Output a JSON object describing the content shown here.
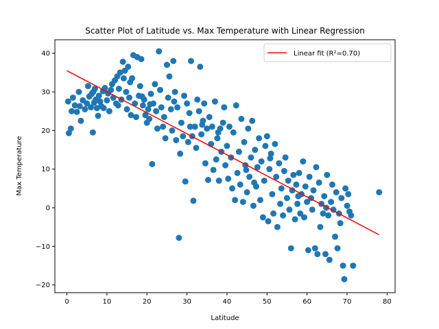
{
  "chart_data": {
    "type": "scatter",
    "title": "Scatter Plot of Latitude vs. Max Temperature with Linear Regression",
    "xlabel": "Latitude",
    "ylabel": "Max Temperature",
    "xlim": [
      -3,
      82
    ],
    "ylim": [
      -22,
      43.5
    ],
    "xticks": [
      0,
      10,
      20,
      30,
      40,
      50,
      60,
      70,
      80
    ],
    "yticks": [
      -20,
      -10,
      0,
      10,
      20,
      30,
      40
    ],
    "grid": false,
    "legend_position": "top-right",
    "colors": {
      "points": "#1f77b4",
      "fit_line": "#ff0000"
    },
    "series": [
      {
        "type": "scatter",
        "points": [
          [
            0.3,
            27.5
          ],
          [
            0.5,
            19.3
          ],
          [
            1.0,
            20.5
          ],
          [
            1.2,
            25.0
          ],
          [
            1.5,
            28.5
          ],
          [
            2.0,
            26.5
          ],
          [
            2.5,
            24.8
          ],
          [
            3.0,
            30.0
          ],
          [
            3.5,
            22.5
          ],
          [
            4.0,
            27.8
          ],
          [
            4.5,
            25.5
          ],
          [
            5.0,
            27.0
          ],
          [
            5.3,
            31.5
          ],
          [
            5.6,
            28.8
          ],
          [
            6.0,
            26.0
          ],
          [
            6.2,
            29.5
          ],
          [
            6.5,
            19.5
          ],
          [
            6.8,
            27.2
          ],
          [
            7.0,
            30.8
          ],
          [
            7.2,
            28.0
          ],
          [
            7.5,
            25.8
          ],
          [
            7.8,
            23.8
          ],
          [
            8.0,
            29.0
          ],
          [
            8.3,
            27.5
          ],
          [
            8.6,
            26.3
          ],
          [
            9.0,
            30.2
          ],
          [
            9.5,
            31.0
          ],
          [
            10.0,
            27.8
          ],
          [
            10.3,
            29.6
          ],
          [
            10.6,
            25.0
          ],
          [
            11.0,
            30.5
          ],
          [
            11.3,
            32.0
          ],
          [
            11.6,
            28.5
          ],
          [
            12.0,
            33.0
          ],
          [
            12.3,
            27.0
          ],
          [
            12.6,
            34.0
          ],
          [
            13.0,
            30.8
          ],
          [
            13.3,
            35.0
          ],
          [
            13.6,
            28.0
          ],
          [
            14.0,
            37.8
          ],
          [
            14.2,
            33.5
          ],
          [
            14.5,
            35.5
          ],
          [
            14.8,
            30.0
          ],
          [
            15.0,
            25.5
          ],
          [
            15.3,
            36.5
          ],
          [
            15.6,
            28.5
          ],
          [
            16.0,
            24.0
          ],
          [
            16.3,
            33.5
          ],
          [
            16.6,
            39.5
          ],
          [
            17.0,
            27.0
          ],
          [
            17.3,
            23.5
          ],
          [
            17.6,
            39.0
          ],
          [
            18.0,
            29.0
          ],
          [
            18.3,
            31.5
          ],
          [
            18.6,
            38.5
          ],
          [
            19.0,
            26.5
          ],
          [
            19.3,
            28.0
          ],
          [
            19.6,
            24.0
          ],
          [
            20.0,
            22.0
          ],
          [
            20.3,
            25.5
          ],
          [
            20.6,
            23.0
          ],
          [
            21.0,
            29.5
          ],
          [
            21.3,
            11.3
          ],
          [
            21.6,
            27.0
          ],
          [
            22.0,
            32.0
          ],
          [
            22.3,
            25.0
          ],
          [
            22.6,
            20.5
          ],
          [
            23.0,
            40.5
          ],
          [
            23.3,
            30.5
          ],
          [
            23.6,
            26.0
          ],
          [
            24.0,
            21.0
          ],
          [
            24.3,
            23.5
          ],
          [
            24.6,
            18.0
          ],
          [
            25.0,
            37.0
          ],
          [
            25.3,
            28.5
          ],
          [
            25.6,
            34.0
          ],
          [
            26.0,
            25.5
          ],
          [
            26.3,
            20.0
          ],
          [
            26.6,
            38.0
          ],
          [
            27.0,
            30.0
          ],
          [
            27.3,
            17.5
          ],
          [
            27.6,
            26.0
          ],
          [
            28.0,
            -7.8
          ],
          [
            28.3,
            14.0
          ],
          [
            28.6,
            22.0
          ],
          [
            29.0,
            18.5
          ],
          [
            29.3,
            29.0
          ],
          [
            29.6,
            6.8
          ],
          [
            30.0,
            27.0
          ],
          [
            30.3,
            17.0
          ],
          [
            30.6,
            24.5
          ],
          [
            31.0,
            38.0
          ],
          [
            31.3,
            18.5
          ],
          [
            31.6,
            1.8
          ],
          [
            32.0,
            21.0
          ],
          [
            32.3,
            15.5
          ],
          [
            32.6,
            28.0
          ],
          [
            33.0,
            25.0
          ],
          [
            33.3,
            36.5
          ],
          [
            33.6,
            19.0
          ],
          [
            34.0,
            22.5
          ],
          [
            34.3,
            27.0
          ],
          [
            34.6,
            11.5
          ],
          [
            35.0,
            20.5
          ],
          [
            35.3,
            7.2
          ],
          [
            35.6,
            23.5
          ],
          [
            36.0,
            16.5
          ],
          [
            36.3,
            21.0
          ],
          [
            36.6,
            9.8
          ],
          [
            37.0,
            27.5
          ],
          [
            37.3,
            12.5
          ],
          [
            37.6,
            18.0
          ],
          [
            38.0,
            7.0
          ],
          [
            38.3,
            20.5
          ],
          [
            38.6,
            14.5
          ],
          [
            39.0,
            22.0
          ],
          [
            39.3,
            26.0
          ],
          [
            39.6,
            11.0
          ],
          [
            40.0,
            16.0
          ],
          [
            40.3,
            7.5
          ],
          [
            40.6,
            21.0
          ],
          [
            41.0,
            13.0
          ],
          [
            41.3,
            5.0
          ],
          [
            41.6,
            19.5
          ],
          [
            42.0,
            2.0
          ],
          [
            42.3,
            26.5
          ],
          [
            42.6,
            9.0
          ],
          [
            43.0,
            14.5
          ],
          [
            43.3,
            6.0
          ],
          [
            43.6,
            23.0
          ],
          [
            44.0,
            1.5
          ],
          [
            44.3,
            17.0
          ],
          [
            44.6,
            11.0
          ],
          [
            45.0,
            4.0
          ],
          [
            45.3,
            20.5
          ],
          [
            45.6,
            8.0
          ],
          [
            46.0,
            13.0
          ],
          [
            46.3,
            22.5
          ],
          [
            46.6,
            0.5
          ],
          [
            47.0,
            15.0
          ],
          [
            47.3,
            5.5
          ],
          [
            47.6,
            10.5
          ],
          [
            48.0,
            18.0
          ],
          [
            48.3,
            2.0
          ],
          [
            48.6,
            12.0
          ],
          [
            49.0,
            -2.5
          ],
          [
            49.3,
            7.0
          ],
          [
            49.6,
            16.0
          ],
          [
            50.0,
            18.5
          ],
          [
            50.3,
            -3.5
          ],
          [
            50.6,
            10.0
          ],
          [
            51.0,
            14.0
          ],
          [
            51.3,
            3.5
          ],
          [
            51.6,
            -1.5
          ],
          [
            52.0,
            16.5
          ],
          [
            52.3,
            8.0
          ],
          [
            52.6,
            -5.0
          ],
          [
            53.0,
            11.5
          ],
          [
            53.3,
            1.0
          ],
          [
            53.6,
            5.0
          ],
          [
            54.0,
            -2.0
          ],
          [
            54.3,
            9.5
          ],
          [
            54.6,
            13.0
          ],
          [
            55.0,
            2.5
          ],
          [
            55.3,
            7.0
          ],
          [
            55.6,
            -0.5
          ],
          [
            56.0,
            -10.5
          ],
          [
            56.3,
            4.5
          ],
          [
            56.6,
            8.5
          ],
          [
            57.0,
            -3.0
          ],
          [
            57.3,
            6.0
          ],
          [
            57.6,
            1.0
          ],
          [
            58.0,
            9.0
          ],
          [
            58.3,
            -1.5
          ],
          [
            58.6,
            3.5
          ],
          [
            59.0,
            12.0
          ],
          [
            59.3,
            -2.5
          ],
          [
            59.6,
            5.5
          ],
          [
            60.0,
            1.5
          ],
          [
            60.3,
            -11.0
          ],
          [
            60.6,
            8.0
          ],
          [
            61.0,
            2.5
          ],
          [
            61.3,
            -0.5
          ],
          [
            61.6,
            4.5
          ],
          [
            62.0,
            -10.5
          ],
          [
            62.3,
            10.5
          ],
          [
            62.6,
            -12.0
          ],
          [
            63.0,
            6.5
          ],
          [
            63.3,
            -5.0
          ],
          [
            63.6,
            1.0
          ],
          [
            64.0,
            -1.5
          ],
          [
            64.3,
            3.0
          ],
          [
            64.6,
            -12.0
          ],
          [
            65.0,
            8.5
          ],
          [
            65.3,
            -2.0
          ],
          [
            65.6,
            -13.5
          ],
          [
            66.0,
            1.5
          ],
          [
            66.3,
            6.0
          ],
          [
            66.6,
            -0.5
          ],
          [
            67.0,
            -7.5
          ],
          [
            67.3,
            4.0
          ],
          [
            67.6,
            -10.5
          ],
          [
            68.0,
            -1.5
          ],
          [
            68.3,
            -4.0
          ],
          [
            68.6,
            2.5
          ],
          [
            69.0,
            -15.0
          ],
          [
            69.3,
            -18.5
          ],
          [
            69.6,
            5.0
          ],
          [
            70.0,
            0.5
          ],
          [
            70.3,
            3.5
          ],
          [
            70.6,
            -1.0
          ],
          [
            71.0,
            -2.0
          ],
          [
            71.5,
            -15.0
          ],
          [
            78.0,
            4.0
          ],
          [
            9.2,
            25.8
          ],
          [
            12.8,
            26.5
          ],
          [
            15.8,
            32.5
          ],
          [
            18.8,
            28.8
          ],
          [
            26.8,
            27.5
          ],
          [
            33.8,
            21.5
          ],
          [
            37.8,
            19.5
          ],
          [
            44.8,
            9.8
          ],
          [
            50.8,
            12.8
          ],
          [
            57.8,
            3.0
          ],
          [
            64.8,
            0.0
          ],
          [
            3.2,
            26.3
          ],
          [
            6.6,
            30.0
          ],
          [
            20.8,
            26.8
          ],
          [
            30.8,
            21.0
          ],
          [
            46.8,
            6.5
          ]
        ]
      },
      {
        "type": "line",
        "name": "Linear fit (R²=0.70)",
        "x": [
          0,
          78
        ],
        "y": [
          35.5,
          -7
        ]
      }
    ]
  }
}
